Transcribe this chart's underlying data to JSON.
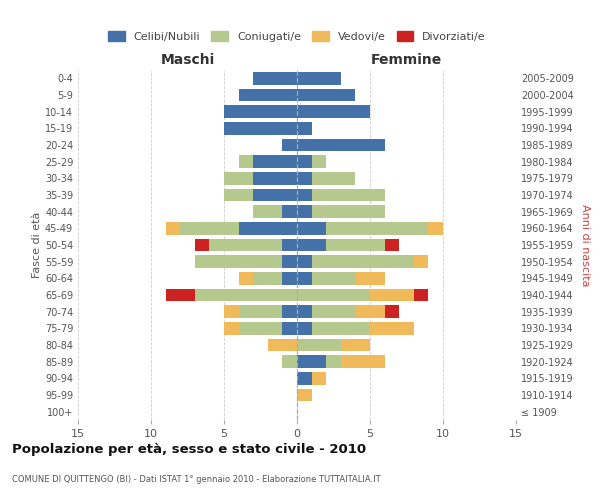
{
  "age_groups": [
    "100+",
    "95-99",
    "90-94",
    "85-89",
    "80-84",
    "75-79",
    "70-74",
    "65-69",
    "60-64",
    "55-59",
    "50-54",
    "45-49",
    "40-44",
    "35-39",
    "30-34",
    "25-29",
    "20-24",
    "15-19",
    "10-14",
    "5-9",
    "0-4"
  ],
  "birth_years": [
    "≤ 1909",
    "1910-1914",
    "1915-1919",
    "1920-1924",
    "1925-1929",
    "1930-1934",
    "1935-1939",
    "1940-1944",
    "1945-1949",
    "1950-1954",
    "1955-1959",
    "1960-1964",
    "1965-1969",
    "1970-1974",
    "1975-1979",
    "1980-1984",
    "1985-1989",
    "1990-1994",
    "1995-1999",
    "2000-2004",
    "2005-2009"
  ],
  "colors": {
    "celibi": "#4472a8",
    "coniugati": "#b5c98e",
    "vedovi": "#f0b95a",
    "divorziati": "#cc2222"
  },
  "maschi": {
    "celibi": [
      0,
      0,
      0,
      0,
      0,
      1,
      1,
      0,
      1,
      1,
      1,
      4,
      1,
      3,
      3,
      3,
      1,
      5,
      5,
      4,
      3
    ],
    "coniugati": [
      0,
      0,
      0,
      1,
      0,
      3,
      3,
      7,
      2,
      6,
      5,
      4,
      2,
      2,
      2,
      1,
      0,
      0,
      0,
      0,
      0
    ],
    "vedovi": [
      0,
      0,
      0,
      0,
      2,
      1,
      1,
      0,
      1,
      0,
      0,
      1,
      0,
      0,
      0,
      0,
      0,
      0,
      0,
      0,
      0
    ],
    "divorziati": [
      0,
      0,
      0,
      0,
      0,
      0,
      0,
      2,
      0,
      0,
      1,
      0,
      0,
      0,
      0,
      0,
      0,
      0,
      0,
      0,
      0
    ]
  },
  "femmine": {
    "celibi": [
      0,
      0,
      1,
      2,
      0,
      1,
      1,
      0,
      1,
      1,
      2,
      2,
      1,
      1,
      1,
      1,
      6,
      1,
      5,
      4,
      3
    ],
    "coniugati": [
      0,
      0,
      0,
      1,
      3,
      4,
      3,
      5,
      3,
      7,
      4,
      7,
      5,
      5,
      3,
      1,
      0,
      0,
      0,
      0,
      0
    ],
    "vedovi": [
      0,
      1,
      1,
      3,
      2,
      3,
      2,
      3,
      2,
      1,
      0,
      1,
      0,
      0,
      0,
      0,
      0,
      0,
      0,
      0,
      0
    ],
    "divorziati": [
      0,
      0,
      0,
      0,
      0,
      0,
      1,
      1,
      0,
      0,
      1,
      0,
      0,
      0,
      0,
      0,
      0,
      0,
      0,
      0,
      0
    ]
  },
  "xlim": 15,
  "title": "Popolazione per età, sesso e stato civile - 2010",
  "subtitle": "COMUNE DI QUITTENGO (BI) - Dati ISTAT 1° gennaio 2010 - Elaborazione TUTTAITALIA.IT",
  "xlabel_left": "Maschi",
  "xlabel_right": "Femmine",
  "ylabel_left": "Fasce di età",
  "ylabel_right": "Anni di nascita",
  "legend_labels": [
    "Celibi/Nubili",
    "Coniugati/e",
    "Vedovi/e",
    "Divorziati/e"
  ],
  "background_color": "#ffffff",
  "grid_color": "#cccccc"
}
